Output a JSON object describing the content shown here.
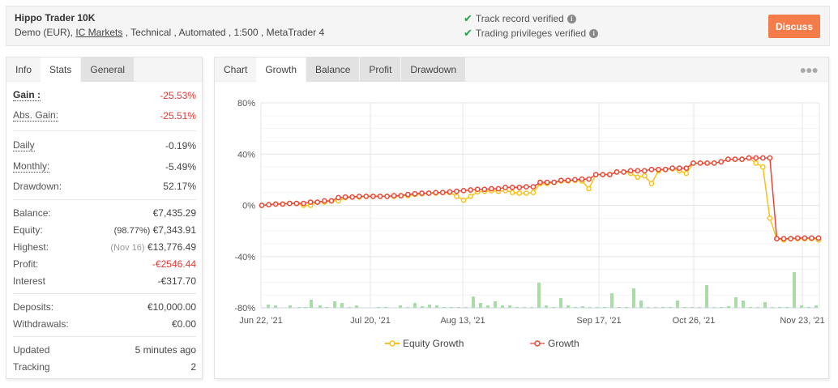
{
  "header": {
    "title": "Hippo Trader 10K",
    "subtitle_prefix": "Demo (EUR), ",
    "broker_link": "IC Markets",
    "subtitle_suffix": " , Technical , Automated , 1:500 , MetaTrader 4",
    "verifications": [
      {
        "label": "Track record verified",
        "icon": "check-icon"
      },
      {
        "label": "Trading privileges verified",
        "icon": "check-icon"
      }
    ],
    "discuss_label": "Discuss",
    "discuss_color": "#f47c4a"
  },
  "stats_panel": {
    "tabs": [
      {
        "label": "Info",
        "active": false
      },
      {
        "label": "Stats",
        "active": true
      },
      {
        "label": "General",
        "active": false
      }
    ],
    "gain": {
      "label": "Gain :",
      "value": "-25.53%"
    },
    "abs_gain": {
      "label": "Abs. Gain:",
      "value": "-25.51%"
    },
    "daily": {
      "label": "Daily",
      "value": "-0.19%"
    },
    "monthly": {
      "label": "Monthly:",
      "value": "-5.49%"
    },
    "drawdown": {
      "label": "Drawdown:",
      "value": "52.17%"
    },
    "balance": {
      "label": "Balance:",
      "value": "€7,435.29"
    },
    "equity": {
      "label": "Equity:",
      "note": "(98.77%)",
      "value": "€7,343.91"
    },
    "highest": {
      "label": "Highest:",
      "note": "(Nov 16)",
      "value": "€13,776.49"
    },
    "profit": {
      "label": "Profit:",
      "value": "-€2546.44"
    },
    "interest": {
      "label": "Interest",
      "value": "-€317.70"
    },
    "deposits": {
      "label": "Deposits:",
      "value": "€10,000.00"
    },
    "withdrawals": {
      "label": "Withdrawals:",
      "value": "€0.00"
    },
    "updated": {
      "label": "Updated",
      "value": "5 minutes ago"
    },
    "tracking": {
      "label": "Tracking",
      "value": "2"
    }
  },
  "chart_panel": {
    "tabs": [
      {
        "label": "Chart",
        "active": false
      },
      {
        "label": "Growth",
        "active": true
      },
      {
        "label": "Balance",
        "active": false
      },
      {
        "label": "Profit",
        "active": false
      },
      {
        "label": "Drawdown",
        "active": false
      }
    ],
    "menu_icon": "more-dots-icon",
    "legend": [
      {
        "label": "Equity Growth",
        "color": "#f9c21a"
      },
      {
        "label": "Growth",
        "color": "#e8473a"
      }
    ]
  },
  "chart_data": {
    "type": "line",
    "title": "",
    "xlabel": "",
    "ylabel": "",
    "ylim": [
      -80,
      80
    ],
    "y_ticks": [
      "80%",
      "40%",
      "0%",
      "-40%",
      "-80%"
    ],
    "x_tick_labels": [
      "Jun 22, '21",
      "Jul 20, '21",
      "Aug 13, '21",
      "Sep 17, '21",
      "Oct 26, '21",
      "Nov 23, '21"
    ],
    "grid": true,
    "legend_position": "bottom",
    "series": [
      {
        "name": "Growth",
        "color": "#e8473a",
        "values": [
          0,
          0.5,
          1,
          1,
          1.5,
          1.5,
          1.5,
          2.5,
          2.5,
          3.5,
          3.5,
          6,
          6.5,
          6.5,
          7,
          7,
          7,
          7,
          7,
          7.5,
          7.5,
          8.5,
          9,
          9.5,
          9.5,
          10,
          10,
          10.5,
          11,
          11.5,
          12,
          12.5,
          12.5,
          13,
          13,
          14,
          14,
          14,
          14.5,
          14.5,
          18,
          18,
          18,
          19.5,
          19.5,
          20,
          20.5,
          20.5,
          24,
          24,
          24,
          26,
          26,
          27,
          27,
          27,
          28,
          28,
          28,
          29,
          29,
          29,
          33,
          33,
          33,
          33,
          34,
          36,
          36,
          36,
          37,
          37,
          37,
          37,
          -26,
          -26,
          -26,
          -25.5,
          -25.5,
          -25.5,
          -25.5
        ]
      },
      {
        "name": "Equity Growth",
        "color": "#f9c21a",
        "values": [
          0,
          0.5,
          1,
          1,
          1.5,
          1.5,
          0,
          0,
          2.5,
          2.5,
          3.5,
          3.5,
          6,
          6.5,
          6.5,
          7,
          7,
          7,
          7,
          7,
          7.5,
          7.5,
          8.5,
          9,
          9.5,
          9.5,
          10,
          10,
          7,
          4,
          7,
          10.5,
          11,
          11.5,
          11,
          11.5,
          10,
          9.5,
          9.5,
          10,
          17,
          17,
          18,
          19,
          19,
          19.5,
          19,
          13,
          24,
          24,
          24,
          26,
          26,
          25,
          22,
          23,
          17,
          27,
          28,
          28.5,
          27,
          25,
          33,
          33,
          33,
          33,
          34,
          36,
          36,
          36,
          37,
          33,
          30,
          -10,
          -26,
          -27,
          -26,
          -26,
          -26,
          -26,
          -27
        ]
      }
    ],
    "volume_bars_note": "green bars along -80% baseline indicate trading activity"
  }
}
